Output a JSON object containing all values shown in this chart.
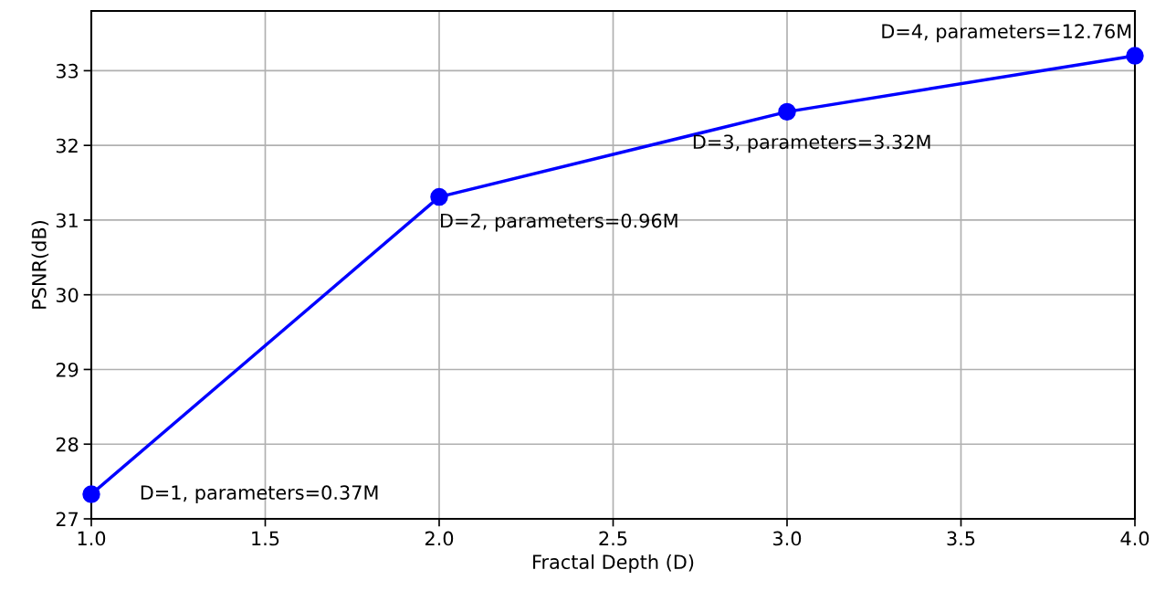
{
  "chart_data": {
    "type": "line",
    "xlabel": "Fractal Depth (D)",
    "ylabel": "PSNR(dB)",
    "x": [
      1,
      2,
      3,
      4
    ],
    "series": [
      {
        "color": "#0000ff",
        "values": [
          27.33,
          31.31,
          32.45,
          33.2
        ]
      }
    ],
    "marker": "circle",
    "line_style": "solid",
    "grid": true,
    "xlim": [
      1.0,
      4.0
    ],
    "xticks": [
      {
        "value": 1.0,
        "label": "1.0"
      },
      {
        "value": 1.5,
        "label": "1.5"
      },
      {
        "value": 2.0,
        "label": "2.0"
      },
      {
        "value": 2.5,
        "label": "2.5"
      },
      {
        "value": 3.0,
        "label": "3.0"
      },
      {
        "value": 3.5,
        "label": "3.5"
      },
      {
        "value": 4.0,
        "label": "4.0"
      }
    ],
    "ylim": [
      27,
      33.8
    ],
    "yticks": [
      27,
      28,
      29,
      30,
      31,
      32,
      33
    ],
    "annotations": [
      {
        "text": "D=1, parameters=0.37M",
        "x": 1,
        "y": 27.33
      },
      {
        "text": "D=2, parameters=0.96M",
        "x": 2,
        "y": 31.31
      },
      {
        "text": "D=3, parameters=3.32M",
        "x": 3,
        "y": 32.45
      },
      {
        "text": "D=4, parameters=12.76M",
        "x": 4,
        "y": 33.2
      }
    ]
  }
}
